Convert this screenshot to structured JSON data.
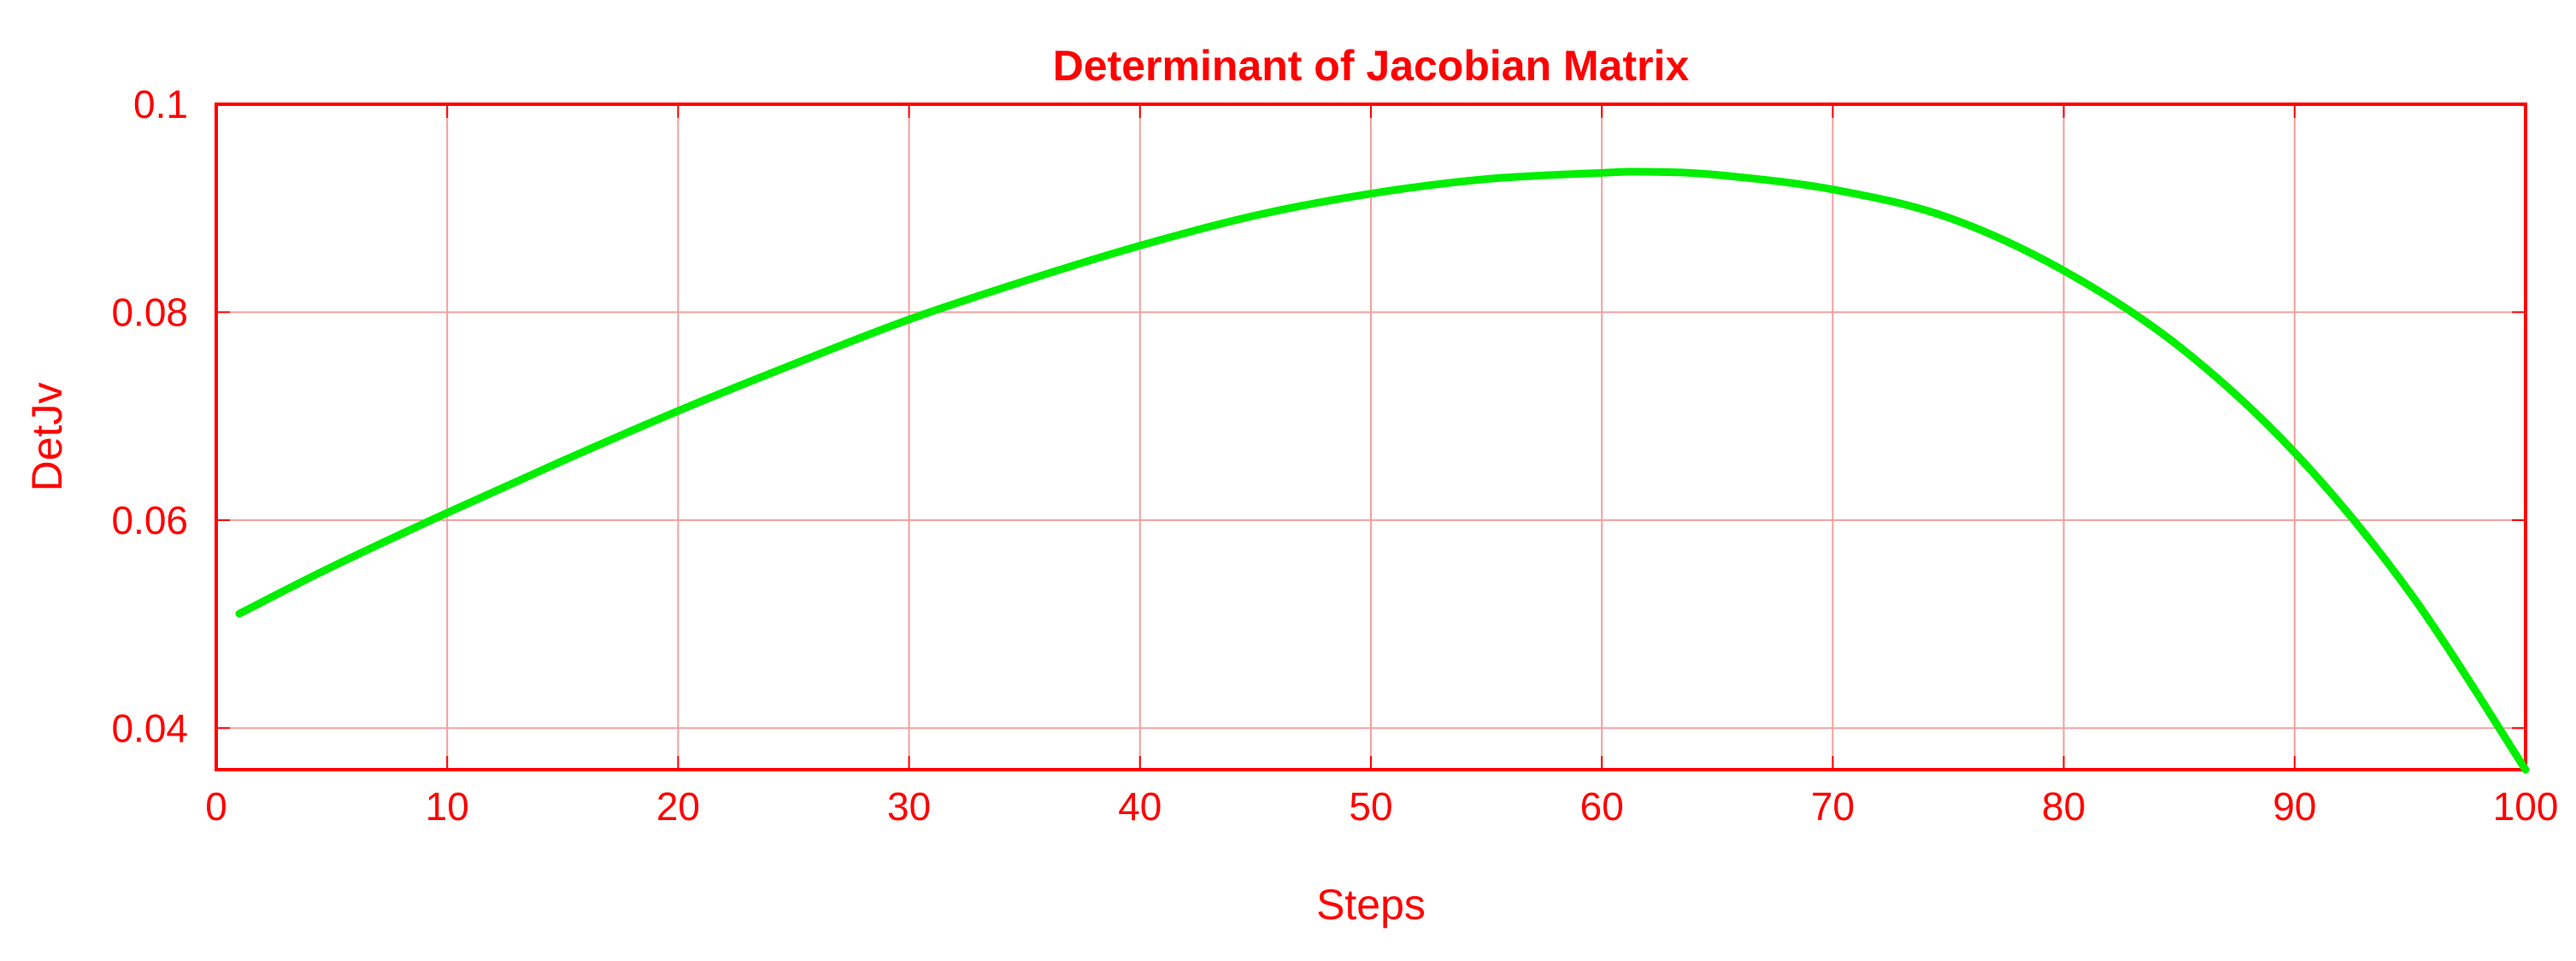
{
  "chart_data": {
    "type": "line",
    "title": "Determinant of Jacobian Matrix",
    "xlabel": "Steps",
    "ylabel": "DetJv",
    "xlim": [
      0,
      100
    ],
    "ylim": [
      0.036,
      0.1
    ],
    "xticks": [
      0,
      10,
      20,
      30,
      40,
      50,
      60,
      70,
      80,
      90,
      100
    ],
    "xtick_labels": [
      "0",
      "10",
      "20",
      "30",
      "40",
      "50",
      "60",
      "70",
      "80",
      "90",
      "100"
    ],
    "yticks": [
      0.04,
      0.06,
      0.08,
      0.1
    ],
    "ytick_labels": [
      "0.04",
      "0.06",
      "0.08",
      "0.1"
    ],
    "grid": true,
    "colors": {
      "text": "#ff0000",
      "axes": "#ff0000",
      "grid": "#f0a0a0",
      "line": "#00ee00",
      "background": "#ffffff"
    },
    "series": [
      {
        "x": [
          1,
          5,
          10,
          15,
          20,
          25,
          30,
          35,
          40,
          45,
          50,
          55,
          60,
          62,
          65,
          70,
          75,
          80,
          85,
          90,
          95,
          100
        ],
        "values": [
          0.051,
          0.0555,
          0.0607,
          0.0657,
          0.0705,
          0.075,
          0.0793,
          0.083,
          0.0864,
          0.0893,
          0.0914,
          0.0928,
          0.0934,
          0.0935,
          0.0932,
          0.0918,
          0.0891,
          0.084,
          0.0767,
          0.0665,
          0.053,
          0.036
        ]
      }
    ]
  }
}
